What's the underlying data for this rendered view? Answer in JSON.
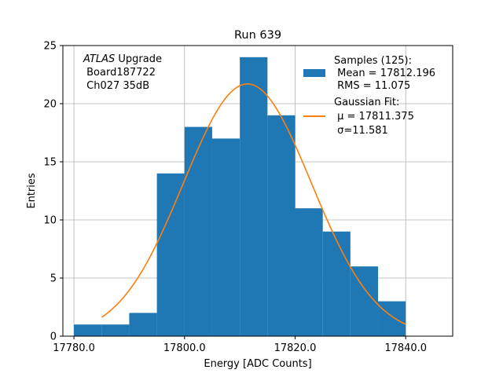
{
  "chart_data": {
    "type": "bar",
    "title": "Run 639",
    "xlabel": "Energy [ADC Counts]",
    "ylabel": "Entries",
    "xlim": [
      17778.0,
      17848.5
    ],
    "ylim": [
      0,
      25
    ],
    "x_ticks": [
      17780.0,
      17800.0,
      17820.0,
      17840.0
    ],
    "x_tick_labels": [
      "17780.0",
      "17800.0",
      "17820.0",
      "17840.0"
    ],
    "y_ticks": [
      0,
      5,
      10,
      15,
      20,
      25
    ],
    "y_tick_labels": [
      "0",
      "5",
      "10",
      "15",
      "20",
      "25"
    ],
    "grid": true,
    "histogram": {
      "name": "Samples (125):",
      "color": "#1f77b4",
      "bin_edges": [
        17780,
        17785,
        17790,
        17795,
        17800,
        17805,
        17810,
        17815,
        17820,
        17825,
        17830,
        17835,
        17840
      ],
      "counts": [
        1,
        1,
        2,
        14,
        18,
        17,
        24,
        19,
        11,
        9,
        6,
        3
      ]
    },
    "fit": {
      "name": "Gaussian Fit:",
      "color": "#ff7f0e",
      "mu": 17811.375,
      "sigma": 11.581,
      "amplitude": 21.7,
      "x_range": [
        17785,
        17840
      ]
    },
    "legend": {
      "position": "top-right",
      "samples_title": "Samples (125):",
      "samples_mean": " Mean = 17812.196",
      "samples_rms": " RMS = 11.075",
      "fit_title": "Gaussian Fit:",
      "fit_mu": " μ = 17811.375",
      "fit_sigma": " σ=11.581"
    },
    "annotation": {
      "atlas": "ATLAS",
      "upgrade": " Upgrade",
      "board": " Board187722",
      "channel": " Ch027 35dB"
    }
  }
}
